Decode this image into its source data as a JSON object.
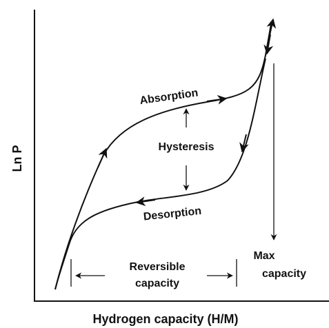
{
  "axes": {
    "y_label": "Ln P",
    "x_label": "Hydrogen capacity (H/M)"
  },
  "curves": {
    "absorption": "Absorption",
    "desorption": "Desorption"
  },
  "annotations": {
    "hysteresis": "Hysteresis",
    "reversible": [
      "Reversible",
      "capacity"
    ],
    "max": [
      "Max",
      "capacity"
    ]
  }
}
